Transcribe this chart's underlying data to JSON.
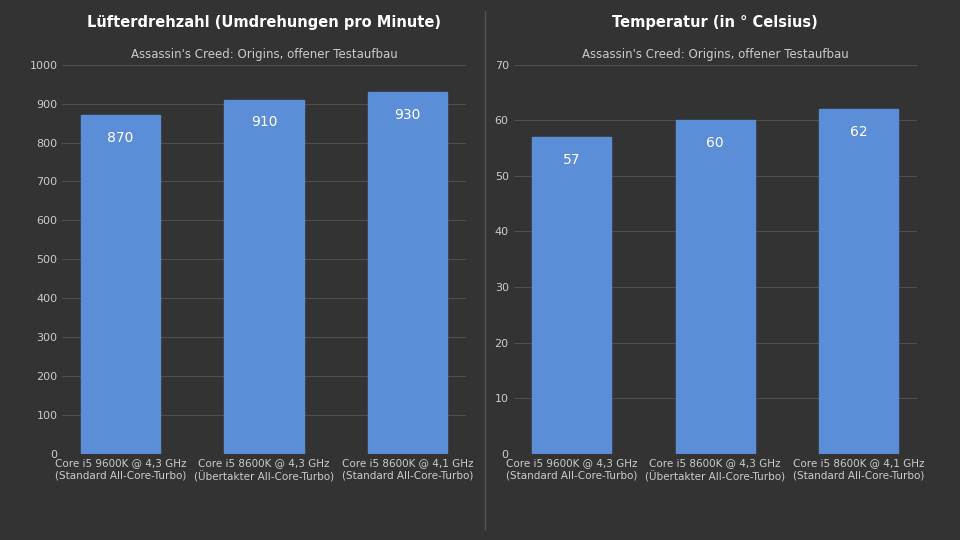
{
  "left_chart": {
    "title": "Lüfterdrehzahl (Umdrehungen pro Minute)",
    "subtitle": "Assassin's Creed: Origins, offener Testaufbau",
    "categories": [
      "Core i5 9600K @ 4,3 GHz\n(Standard All-Core-Turbo)",
      "Core i5 8600K @ 4,3 GHz\n(Übertakter All-Core-Turbo)",
      "Core i5 8600K @ 4,1 GHz\n(Standard All-Core-Turbo)"
    ],
    "values": [
      870,
      910,
      930
    ],
    "ylim": [
      0,
      1000
    ],
    "yticks": [
      0,
      100,
      200,
      300,
      400,
      500,
      600,
      700,
      800,
      900,
      1000
    ]
  },
  "right_chart": {
    "title": "Temperatur (in ° Celsius)",
    "subtitle": "Assassin's Creed: Origins, offener Testaufbau",
    "categories": [
      "Core i5 9600K @ 4,3 GHz\n(Standard All-Core-Turbo)",
      "Core i5 8600K @ 4,3 GHz\n(Übertakter All-Core-Turbo)",
      "Core i5 8600K @ 4,1 GHz\n(Standard All-Core-Turbo)"
    ],
    "values": [
      57,
      60,
      62
    ],
    "ylim": [
      0,
      70
    ],
    "yticks": [
      0,
      10,
      20,
      30,
      40,
      50,
      60,
      70
    ]
  },
  "bar_color": "#5b8ed6",
  "background_color": "#333333",
  "axes_bg_color": "#333333",
  "text_color": "#cccccc",
  "grid_color": "#555555",
  "title_fontsize": 10.5,
  "subtitle_fontsize": 8.5,
  "ytick_fontsize": 8,
  "bar_label_fontsize": 10,
  "xtick_fontsize": 7.5,
  "bar_width": 0.55,
  "divider_color": "#555555"
}
